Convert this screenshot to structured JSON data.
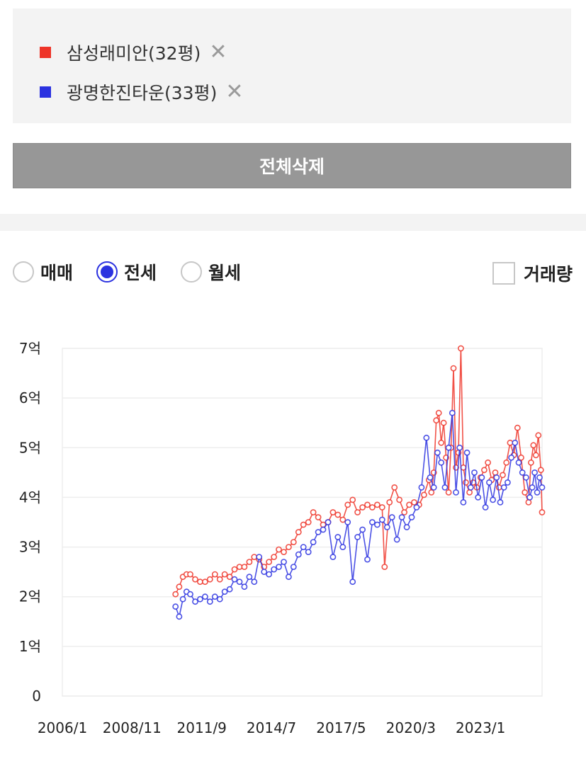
{
  "legend": {
    "items": [
      {
        "label": "삼성래미안(32평)",
        "color": "#ee3428",
        "close": "✕"
      },
      {
        "label": "광명한진타운(33평)",
        "color": "#2b32e0",
        "close": "✕"
      }
    ]
  },
  "delete_all_label": "전체삭제",
  "controls": {
    "radios": [
      {
        "label": "매매",
        "selected": false
      },
      {
        "label": "전세",
        "selected": true
      },
      {
        "label": "월세",
        "selected": false
      }
    ],
    "volume_label": "거래량",
    "volume_checked": false
  },
  "chart_data": {
    "type": "line",
    "y_ticks": [
      "0",
      "1억",
      "2억",
      "3억",
      "4억",
      "5억",
      "6억",
      "7억"
    ],
    "ylim": [
      0,
      7
    ],
    "x_ticks": [
      "2006/1",
      "2008/11",
      "2011/9",
      "2014/7",
      "2017/5",
      "2020/3",
      "2023/1"
    ],
    "x_tick_values": [
      2006.0,
      2008.833,
      2011.667,
      2014.5,
      2017.333,
      2020.167,
      2023.0
    ],
    "xlim": [
      2006.0,
      2025.5
    ],
    "grid": true,
    "series": [
      {
        "name": "삼성래미안(32평)",
        "color": "#ee3428",
        "points": [
          [
            2010.6,
            2.05
          ],
          [
            2010.75,
            2.2
          ],
          [
            2010.9,
            2.4
          ],
          [
            2011.05,
            2.45
          ],
          [
            2011.2,
            2.45
          ],
          [
            2011.4,
            2.35
          ],
          [
            2011.6,
            2.3
          ],
          [
            2011.8,
            2.3
          ],
          [
            2012.0,
            2.35
          ],
          [
            2012.2,
            2.45
          ],
          [
            2012.4,
            2.35
          ],
          [
            2012.6,
            2.45
          ],
          [
            2012.8,
            2.4
          ],
          [
            2013.0,
            2.55
          ],
          [
            2013.2,
            2.6
          ],
          [
            2013.4,
            2.6
          ],
          [
            2013.6,
            2.7
          ],
          [
            2013.8,
            2.8
          ],
          [
            2014.0,
            2.75
          ],
          [
            2014.2,
            2.6
          ],
          [
            2014.4,
            2.7
          ],
          [
            2014.6,
            2.8
          ],
          [
            2014.8,
            2.95
          ],
          [
            2015.0,
            2.9
          ],
          [
            2015.2,
            3.0
          ],
          [
            2015.4,
            3.1
          ],
          [
            2015.6,
            3.3
          ],
          [
            2015.8,
            3.45
          ],
          [
            2016.0,
            3.5
          ],
          [
            2016.2,
            3.7
          ],
          [
            2016.4,
            3.6
          ],
          [
            2016.6,
            3.45
          ],
          [
            2016.8,
            3.5
          ],
          [
            2017.0,
            3.7
          ],
          [
            2017.2,
            3.65
          ],
          [
            2017.4,
            3.55
          ],
          [
            2017.6,
            3.85
          ],
          [
            2017.8,
            3.95
          ],
          [
            2018.0,
            3.7
          ],
          [
            2018.2,
            3.8
          ],
          [
            2018.4,
            3.85
          ],
          [
            2018.6,
            3.8
          ],
          [
            2018.8,
            3.85
          ],
          [
            2019.0,
            3.8
          ],
          [
            2019.1,
            2.6
          ],
          [
            2019.3,
            3.9
          ],
          [
            2019.5,
            4.2
          ],
          [
            2019.7,
            3.95
          ],
          [
            2019.9,
            3.7
          ],
          [
            2020.1,
            3.85
          ],
          [
            2020.3,
            3.9
          ],
          [
            2020.5,
            3.85
          ],
          [
            2020.7,
            4.05
          ],
          [
            2020.9,
            4.35
          ],
          [
            2021.0,
            4.1
          ],
          [
            2021.1,
            4.5
          ],
          [
            2021.2,
            5.55
          ],
          [
            2021.3,
            5.7
          ],
          [
            2021.4,
            5.1
          ],
          [
            2021.5,
            5.5
          ],
          [
            2021.6,
            4.8
          ],
          [
            2021.7,
            4.1
          ],
          [
            2021.8,
            5.0
          ],
          [
            2021.9,
            6.6
          ],
          [
            2022.0,
            4.6
          ],
          [
            2022.1,
            4.9
          ],
          [
            2022.2,
            7.0
          ],
          [
            2022.3,
            4.6
          ],
          [
            2022.4,
            4.3
          ],
          [
            2022.55,
            4.1
          ],
          [
            2022.7,
            4.3
          ],
          [
            2022.85,
            4.2
          ],
          [
            2023.0,
            4.4
          ],
          [
            2023.15,
            4.55
          ],
          [
            2023.3,
            4.7
          ],
          [
            2023.45,
            4.35
          ],
          [
            2023.6,
            4.5
          ],
          [
            2023.75,
            4.2
          ],
          [
            2023.9,
            4.45
          ],
          [
            2024.05,
            4.7
          ],
          [
            2024.2,
            5.1
          ],
          [
            2024.35,
            4.85
          ],
          [
            2024.5,
            5.4
          ],
          [
            2024.65,
            4.8
          ],
          [
            2024.8,
            4.1
          ],
          [
            2024.95,
            3.9
          ],
          [
            2025.05,
            4.7
          ],
          [
            2025.15,
            5.05
          ],
          [
            2025.25,
            4.85
          ],
          [
            2025.35,
            5.25
          ],
          [
            2025.45,
            4.55
          ],
          [
            2025.5,
            3.7
          ]
        ]
      },
      {
        "name": "광명한진타운(33평)",
        "color": "#2b32e0",
        "points": [
          [
            2010.6,
            1.8
          ],
          [
            2010.75,
            1.6
          ],
          [
            2010.9,
            1.95
          ],
          [
            2011.05,
            2.1
          ],
          [
            2011.2,
            2.05
          ],
          [
            2011.4,
            1.9
          ],
          [
            2011.6,
            1.95
          ],
          [
            2011.8,
            2.0
          ],
          [
            2012.0,
            1.9
          ],
          [
            2012.2,
            2.0
          ],
          [
            2012.4,
            1.95
          ],
          [
            2012.6,
            2.1
          ],
          [
            2012.8,
            2.15
          ],
          [
            2013.0,
            2.35
          ],
          [
            2013.2,
            2.3
          ],
          [
            2013.4,
            2.2
          ],
          [
            2013.6,
            2.4
          ],
          [
            2013.8,
            2.3
          ],
          [
            2014.0,
            2.8
          ],
          [
            2014.2,
            2.5
          ],
          [
            2014.4,
            2.45
          ],
          [
            2014.6,
            2.55
          ],
          [
            2014.8,
            2.6
          ],
          [
            2015.0,
            2.7
          ],
          [
            2015.2,
            2.4
          ],
          [
            2015.4,
            2.6
          ],
          [
            2015.6,
            2.85
          ],
          [
            2015.8,
            3.0
          ],
          [
            2016.0,
            2.9
          ],
          [
            2016.2,
            3.1
          ],
          [
            2016.4,
            3.3
          ],
          [
            2016.6,
            3.35
          ],
          [
            2016.8,
            3.5
          ],
          [
            2017.0,
            2.8
          ],
          [
            2017.2,
            3.2
          ],
          [
            2017.4,
            3.0
          ],
          [
            2017.6,
            3.5
          ],
          [
            2017.8,
            2.3
          ],
          [
            2018.0,
            3.2
          ],
          [
            2018.2,
            3.35
          ],
          [
            2018.4,
            2.75
          ],
          [
            2018.6,
            3.5
          ],
          [
            2018.8,
            3.45
          ],
          [
            2019.0,
            3.55
          ],
          [
            2019.2,
            3.4
          ],
          [
            2019.4,
            3.6
          ],
          [
            2019.6,
            3.15
          ],
          [
            2019.8,
            3.6
          ],
          [
            2020.0,
            3.4
          ],
          [
            2020.2,
            3.6
          ],
          [
            2020.4,
            3.8
          ],
          [
            2020.6,
            4.2
          ],
          [
            2020.8,
            5.2
          ],
          [
            2020.95,
            4.4
          ],
          [
            2021.1,
            4.2
          ],
          [
            2021.25,
            4.9
          ],
          [
            2021.4,
            4.7
          ],
          [
            2021.55,
            4.2
          ],
          [
            2021.7,
            5.0
          ],
          [
            2021.85,
            5.7
          ],
          [
            2022.0,
            4.1
          ],
          [
            2022.15,
            5.0
          ],
          [
            2022.3,
            3.9
          ],
          [
            2022.45,
            4.9
          ],
          [
            2022.6,
            4.2
          ],
          [
            2022.75,
            4.5
          ],
          [
            2022.9,
            4.0
          ],
          [
            2023.05,
            4.4
          ],
          [
            2023.2,
            3.8
          ],
          [
            2023.35,
            4.3
          ],
          [
            2023.5,
            3.95
          ],
          [
            2023.65,
            4.4
          ],
          [
            2023.8,
            3.9
          ],
          [
            2023.95,
            4.2
          ],
          [
            2024.1,
            4.3
          ],
          [
            2024.25,
            4.8
          ],
          [
            2024.4,
            5.1
          ],
          [
            2024.55,
            4.7
          ],
          [
            2024.7,
            4.5
          ],
          [
            2024.85,
            4.4
          ],
          [
            2025.0,
            4.0
          ],
          [
            2025.1,
            4.2
          ],
          [
            2025.2,
            4.5
          ],
          [
            2025.3,
            4.1
          ],
          [
            2025.4,
            4.4
          ],
          [
            2025.5,
            4.2
          ]
        ]
      }
    ]
  }
}
